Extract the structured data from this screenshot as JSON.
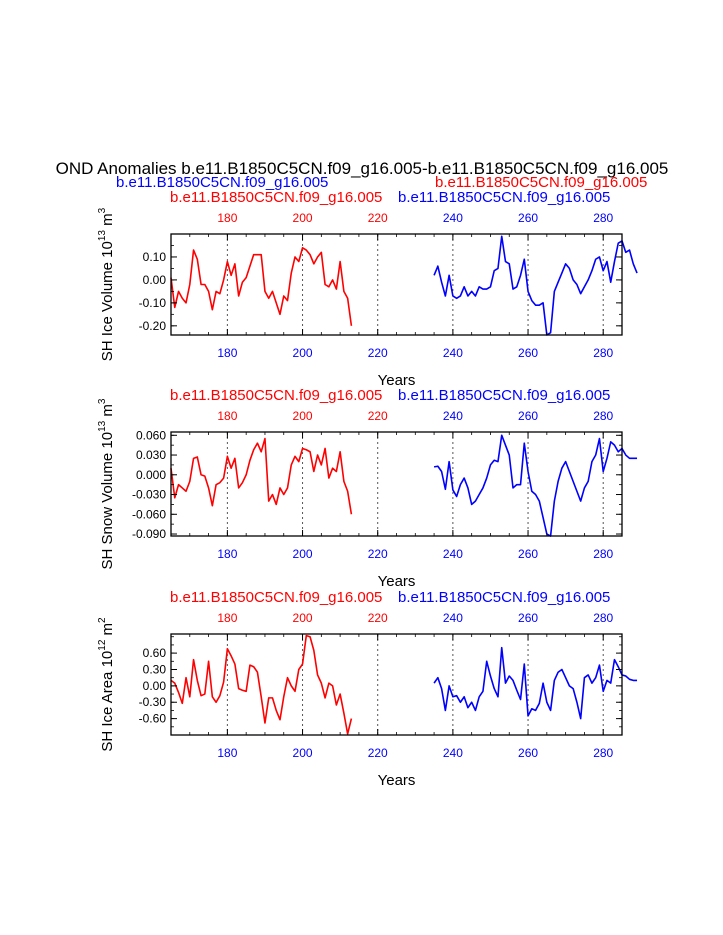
{
  "main_title": "OND Anomalies b.e11.B1850C5CN.f09_g16.005-b.e11.B1850C5CN.f09_g16.005",
  "subtitle_blue": "b.e11.B1850C5CN.f09_g16.005",
  "subtitle_red": "b.e11.B1850C5CN.f09_g16.005",
  "colors": {
    "run1": "#ff0000",
    "run2": "#0000ff",
    "axis": "#000000",
    "grid": "#555555"
  },
  "chart_data": [
    {
      "type": "line",
      "ylabel_main": "SH Ice Volume 10",
      "ylabel_exp": "13",
      "ylabel_unit": " m",
      "ylabel_unit_exp": "3",
      "xlabel": "Years",
      "top_label_red": "b.e11.B1850C5CN.f09_g16.005",
      "top_label_blue": "b.e11.B1850C5CN.f09_g16.005",
      "xlim": [
        165,
        285
      ],
      "ylim": [
        -0.24,
        0.2
      ],
      "y_ticks": [
        -0.2,
        -0.1,
        0.0,
        0.1
      ],
      "y_tick_labels": [
        "-0.20",
        "-0.10",
        "0.00",
        "0.10"
      ],
      "x_ticks": [
        180,
        200,
        220,
        240,
        260,
        280
      ],
      "x_tick_labels": [
        "180",
        "200",
        "220",
        "240",
        "260",
        "280"
      ],
      "grid_x": [
        180,
        200,
        220,
        240,
        260,
        280
      ],
      "series": [
        {
          "name": "b.e11.B1850C5CN.f09_g16.005",
          "color": "red",
          "x_start": 165,
          "values": [
            0.01,
            -0.12,
            -0.05,
            -0.08,
            -0.1,
            -0.02,
            0.13,
            0.09,
            -0.02,
            -0.02,
            -0.05,
            -0.13,
            -0.05,
            -0.06,
            0.0,
            0.08,
            0.02,
            0.07,
            -0.07,
            -0.01,
            0.01,
            0.06,
            0.11,
            0.11,
            0.11,
            -0.05,
            -0.08,
            -0.05,
            -0.1,
            -0.15,
            -0.07,
            -0.09,
            0.03,
            0.1,
            0.08,
            0.14,
            0.13,
            0.11,
            0.07,
            0.1,
            0.12,
            -0.02,
            -0.03,
            0.0,
            -0.04,
            0.08,
            -0.05,
            -0.08,
            -0.2
          ]
        },
        {
          "name": "b.e11.B1850C5CN.f09_g16.005",
          "color": "blue",
          "x_start": 235,
          "values": [
            0.02,
            0.06,
            -0.01,
            -0.07,
            0.02,
            -0.07,
            -0.08,
            -0.07,
            -0.03,
            -0.07,
            -0.05,
            -0.07,
            -0.03,
            -0.04,
            -0.04,
            -0.03,
            0.04,
            0.05,
            0.19,
            0.08,
            0.07,
            -0.04,
            -0.03,
            0.02,
            0.09,
            -0.05,
            -0.09,
            -0.11,
            -0.11,
            -0.1,
            -0.24,
            -0.23,
            -0.05,
            -0.01,
            0.03,
            0.07,
            0.05,
            0.0,
            -0.02,
            -0.06,
            -0.03,
            0.0,
            0.04,
            0.09,
            0.1,
            0.04,
            0.08,
            -0.01,
            0.08,
            0.16,
            0.17,
            0.12,
            0.13,
            0.07,
            0.03
          ]
        }
      ]
    },
    {
      "type": "line",
      "ylabel_main": "SH Snow Volume 10",
      "ylabel_exp": "13",
      "ylabel_unit": " m",
      "ylabel_unit_exp": "3",
      "xlabel": "Years",
      "top_label_red": "b.e11.B1850C5CN.f09_g16.005",
      "top_label_blue": "b.e11.B1850C5CN.f09_g16.005",
      "xlim": [
        165,
        285
      ],
      "ylim": [
        -0.093,
        0.065
      ],
      "y_ticks": [
        -0.09,
        -0.06,
        -0.03,
        0.0,
        0.03,
        0.06
      ],
      "y_tick_labels": [
        "-0.090",
        "-0.060",
        "-0.030",
        "0.000",
        "0.030",
        "0.060"
      ],
      "x_ticks": [
        180,
        200,
        220,
        240,
        260,
        280
      ],
      "x_tick_labels": [
        "180",
        "200",
        "220",
        "240",
        "260",
        "280"
      ],
      "grid_x": [
        180,
        200,
        220,
        240,
        260,
        280
      ],
      "series": [
        {
          "name": "b.e11.B1850C5CN.f09_g16.005",
          "color": "red",
          "x_start": 165,
          "values": [
            0.01,
            -0.035,
            -0.015,
            -0.02,
            -0.025,
            -0.01,
            0.025,
            0.027,
            0.0,
            -0.002,
            -0.02,
            -0.047,
            -0.015,
            -0.012,
            -0.005,
            0.028,
            0.01,
            0.025,
            -0.02,
            -0.012,
            0.0,
            0.022,
            0.038,
            0.048,
            0.035,
            0.055,
            -0.04,
            -0.03,
            -0.045,
            -0.02,
            -0.03,
            -0.02,
            0.015,
            0.028,
            0.02,
            0.04,
            0.038,
            0.035,
            0.005,
            0.03,
            0.015,
            0.04,
            -0.005,
            0.01,
            0.005,
            0.035,
            -0.01,
            -0.025,
            -0.06
          ]
        },
        {
          "name": "b.e11.B1850C5CN.f09_g16.005",
          "color": "blue",
          "x_start": 235,
          "values": [
            0.012,
            0.013,
            0.005,
            -0.022,
            0.02,
            -0.023,
            -0.033,
            -0.015,
            -0.005,
            -0.02,
            -0.045,
            -0.04,
            -0.03,
            -0.02,
            -0.005,
            0.015,
            0.022,
            0.02,
            0.06,
            0.045,
            0.03,
            -0.02,
            -0.015,
            -0.015,
            0.048,
            0.005,
            -0.025,
            -0.03,
            -0.04,
            -0.065,
            -0.09,
            -0.093,
            -0.04,
            -0.01,
            0.01,
            0.02,
            0.005,
            -0.01,
            -0.025,
            -0.04,
            -0.02,
            -0.01,
            0.02,
            0.03,
            0.055,
            0.005,
            0.025,
            0.05,
            0.045,
            0.035,
            0.04,
            0.03,
            0.025,
            0.025,
            0.025
          ]
        }
      ]
    },
    {
      "type": "line",
      "ylabel_main": "SH Ice Area 10",
      "ylabel_exp": "12",
      "ylabel_unit": " m",
      "ylabel_unit_exp": "2",
      "xlabel": "Years",
      "top_label_red": "b.e11.B1850C5CN.f09_g16.005",
      "top_label_blue": "b.e11.B1850C5CN.f09_g16.005",
      "xlim": [
        165,
        285
      ],
      "ylim": [
        -0.9,
        0.95
      ],
      "y_ticks": [
        -0.6,
        -0.3,
        0.0,
        0.3,
        0.6
      ],
      "y_tick_labels": [
        "-0.60",
        "-0.30",
        "0.00",
        "0.30",
        "0.60"
      ],
      "x_ticks": [
        180,
        200,
        220,
        240,
        260,
        280
      ],
      "x_tick_labels": [
        "180",
        "200",
        "220",
        "240",
        "260",
        "280"
      ],
      "grid_x": [
        180,
        200,
        220,
        240,
        260,
        280
      ],
      "series": [
        {
          "name": "b.e11.B1850C5CN.f09_g16.005",
          "color": "red",
          "x_start": 165,
          "values": [
            0.1,
            0.05,
            -0.12,
            -0.32,
            0.15,
            -0.2,
            0.48,
            0.1,
            -0.18,
            -0.15,
            0.45,
            -0.2,
            -0.3,
            -0.18,
            0.07,
            0.68,
            0.55,
            0.4,
            -0.05,
            -0.08,
            -0.1,
            0.38,
            0.35,
            0.25,
            -0.2,
            -0.68,
            -0.22,
            -0.22,
            -0.45,
            -0.62,
            -0.2,
            0.15,
            0.0,
            -0.1,
            0.3,
            0.4,
            0.92,
            0.9,
            0.65,
            0.2,
            0.05,
            -0.22,
            0.05,
            0.0,
            -0.35,
            -0.15,
            -0.5,
            -0.88,
            -0.6
          ]
        },
        {
          "name": "b.e11.B1850C5CN.f09_g16.005",
          "color": "blue",
          "x_start": 235,
          "values": [
            0.05,
            0.15,
            -0.05,
            -0.45,
            0.0,
            -0.2,
            -0.18,
            -0.3,
            -0.2,
            -0.4,
            -0.3,
            -0.45,
            -0.2,
            -0.1,
            0.45,
            0.18,
            -0.05,
            -0.2,
            0.7,
            0.05,
            0.18,
            0.1,
            -0.08,
            -0.25,
            0.4,
            -0.55,
            -0.42,
            -0.45,
            -0.32,
            0.05,
            -0.3,
            -0.45,
            0.1,
            0.25,
            0.3,
            0.15,
            0.0,
            -0.05,
            -0.3,
            -0.6,
            0.15,
            0.2,
            0.05,
            0.15,
            0.38,
            -0.1,
            0.1,
            0.05,
            0.48,
            0.35,
            0.2,
            0.18,
            0.12,
            0.1,
            0.1
          ]
        }
      ]
    }
  ]
}
